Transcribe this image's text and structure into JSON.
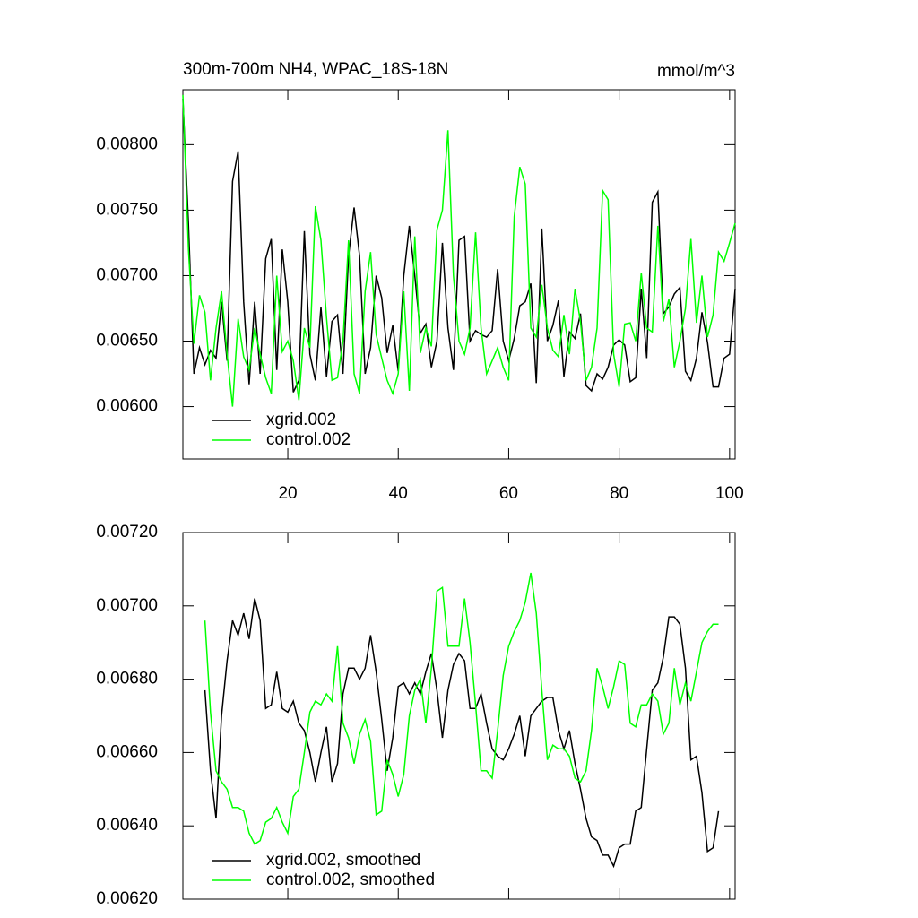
{
  "chart_data": [
    {
      "type": "line",
      "title": "300m-700m NH4, WPAC_18S-18N",
      "units": "mmol/m^3",
      "x": [
        1,
        2,
        3,
        4,
        5,
        6,
        7,
        8,
        9,
        10,
        11,
        12,
        13,
        14,
        15,
        16,
        17,
        18,
        19,
        20,
        21,
        22,
        23,
        24,
        25,
        26,
        27,
        28,
        29,
        30,
        31,
        32,
        33,
        34,
        35,
        36,
        37,
        38,
        39,
        40,
        41,
        42,
        43,
        44,
        45,
        46,
        47,
        48,
        49,
        50,
        51,
        52,
        53,
        54,
        55,
        56,
        57,
        58,
        59,
        60,
        61,
        62,
        63,
        64,
        65,
        66,
        67,
        68,
        69,
        70,
        71,
        72,
        73,
        74,
        75,
        76,
        77,
        78,
        79,
        80,
        81,
        82,
        83,
        84,
        85,
        86,
        87,
        88,
        89,
        90,
        91,
        92,
        93,
        94,
        95,
        96,
        97,
        98,
        99,
        100,
        101
      ],
      "series": [
        {
          "name": "xgrid.002",
          "color": "#000000",
          "values": [
            0.00835,
            0.0074,
            0.00625,
            0.00645,
            0.00632,
            0.00643,
            0.00637,
            0.0068,
            0.00635,
            0.00772,
            0.00795,
            0.0068,
            0.00617,
            0.0068,
            0.00625,
            0.00713,
            0.00728,
            0.00628,
            0.0072,
            0.0068,
            0.00611,
            0.0062,
            0.00734,
            0.0064,
            0.0062,
            0.00676,
            0.00623,
            0.00665,
            0.0067,
            0.00625,
            0.00715,
            0.00752,
            0.00715,
            0.00625,
            0.00645,
            0.007,
            0.00683,
            0.00641,
            0.00662,
            0.00627,
            0.007,
            0.00738,
            0.007,
            0.00656,
            0.00663,
            0.0063,
            0.0065,
            0.00725,
            0.0066,
            0.00628,
            0.00727,
            0.0073,
            0.0065,
            0.00658,
            0.00655,
            0.00653,
            0.00658,
            0.00705,
            0.0065,
            0.00635,
            0.00652,
            0.00677,
            0.0068,
            0.00694,
            0.00618,
            0.00736,
            0.0065,
            0.00662,
            0.00681,
            0.00623,
            0.00657,
            0.00652,
            0.00671,
            0.00616,
            0.00612,
            0.00625,
            0.00621,
            0.0063,
            0.00647,
            0.00651,
            0.00647,
            0.00619,
            0.00622,
            0.0069,
            0.00637,
            0.00756,
            0.00764,
            0.00671,
            0.00676,
            0.00686,
            0.00691,
            0.00627,
            0.0062,
            0.00637,
            0.00672,
            0.00649,
            0.00615,
            0.00615,
            0.00637,
            0.0064,
            0.0069
          ]
        },
        {
          "name": "control.002",
          "color": "#00ff00",
          "values": [
            0.00838,
            0.0072,
            0.00648,
            0.00685,
            0.00672,
            0.0062,
            0.0066,
            0.00688,
            0.0064,
            0.006,
            0.00667,
            0.00638,
            0.00628,
            0.0066,
            0.0064,
            0.00622,
            0.0061,
            0.007,
            0.00642,
            0.0065,
            0.00635,
            0.00605,
            0.0066,
            0.00645,
            0.00753,
            0.00727,
            0.00668,
            0.0062,
            0.00622,
            0.0065,
            0.00727,
            0.00625,
            0.0061,
            0.00688,
            0.00718,
            0.00655,
            0.00637,
            0.0062,
            0.0061,
            0.00625,
            0.00688,
            0.00612,
            0.0073,
            0.00641,
            0.0066,
            0.00646,
            0.00735,
            0.0075,
            0.00811,
            0.007,
            0.0065,
            0.0064,
            0.0066,
            0.00733,
            0.0066,
            0.00625,
            0.00635,
            0.00645,
            0.0063,
            0.0062,
            0.00745,
            0.00783,
            0.0077,
            0.0066,
            0.00653,
            0.00693,
            0.0066,
            0.00643,
            0.00638,
            0.0067,
            0.0064,
            0.0069,
            0.00665,
            0.0062,
            0.0063,
            0.0066,
            0.00765,
            0.00758,
            0.0064,
            0.00615,
            0.00663,
            0.00664,
            0.0065,
            0.00702,
            0.0066,
            0.00657,
            0.00738,
            0.00665,
            0.00682,
            0.0063,
            0.0065,
            0.00675,
            0.00728,
            0.00664,
            0.007,
            0.00653,
            0.0067,
            0.00718,
            0.00711,
            0.00725,
            0.0074
          ]
        }
      ],
      "xlim": [
        1,
        101
      ],
      "xticks": [
        20,
        40,
        60,
        80,
        100
      ],
      "xtick_labels": true,
      "ylim": [
        0.0056,
        0.00842
      ],
      "yticks": [
        {
          "value": 0.006,
          "label": "0.00600"
        },
        {
          "value": 0.0065,
          "label": "0.00650"
        },
        {
          "value": 0.007,
          "label": "0.00700"
        },
        {
          "value": 0.0075,
          "label": "0.00750"
        },
        {
          "value": 0.008,
          "label": "0.00800"
        }
      ],
      "legend": "lower left",
      "grid": false
    },
    {
      "type": "line",
      "x": [
        5,
        6,
        7,
        8,
        9,
        10,
        11,
        12,
        13,
        14,
        15,
        16,
        17,
        18,
        19,
        20,
        21,
        22,
        23,
        24,
        25,
        26,
        27,
        28,
        29,
        30,
        31,
        32,
        33,
        34,
        35,
        36,
        37,
        38,
        39,
        40,
        41,
        42,
        43,
        44,
        45,
        46,
        47,
        48,
        49,
        50,
        51,
        52,
        53,
        54,
        55,
        56,
        57,
        58,
        59,
        60,
        61,
        62,
        63,
        64,
        65,
        66,
        67,
        68,
        69,
        70,
        71,
        72,
        73,
        74,
        75,
        76,
        77,
        78,
        79,
        80,
        81,
        82,
        83,
        84,
        85,
        86,
        87,
        88,
        89,
        90,
        91,
        92,
        93,
        94,
        95,
        96,
        97,
        98
      ],
      "series": [
        {
          "name": "xgrid.002, smoothed",
          "color": "#000000",
          "values": [
            0.00677,
            0.00655,
            0.00642,
            0.0067,
            0.00685,
            0.00696,
            0.00692,
            0.00698,
            0.00691,
            0.00702,
            0.00696,
            0.00672,
            0.00673,
            0.00682,
            0.00672,
            0.00671,
            0.00674,
            0.00668,
            0.00666,
            0.0066,
            0.00652,
            0.0066,
            0.00667,
            0.00652,
            0.00657,
            0.00676,
            0.00683,
            0.00683,
            0.0068,
            0.00683,
            0.00692,
            0.00682,
            0.00669,
            0.00655,
            0.00664,
            0.00678,
            0.00679,
            0.00676,
            0.00679,
            0.00676,
            0.00682,
            0.00687,
            0.00677,
            0.00664,
            0.00677,
            0.00684,
            0.00687,
            0.00685,
            0.00672,
            0.00672,
            0.00676,
            0.00668,
            0.00661,
            0.00659,
            0.00658,
            0.00661,
            0.00665,
            0.0067,
            0.00659,
            0.0067,
            0.00672,
            0.00674,
            0.00675,
            0.00675,
            0.00666,
            0.00661,
            0.00666,
            0.00657,
            0.0065,
            0.00642,
            0.00637,
            0.00636,
            0.00632,
            0.00632,
            0.00629,
            0.00634,
            0.00635,
            0.00635,
            0.00644,
            0.00645,
            0.00661,
            0.00677,
            0.00679,
            0.00686,
            0.00697,
            0.00697,
            0.00695,
            0.00683,
            0.00658,
            0.00659,
            0.00649,
            0.00633,
            0.00634,
            0.00644
          ]
        },
        {
          "name": "control.002, smoothed",
          "color": "#00ff00",
          "values": [
            0.00696,
            0.00671,
            0.00655,
            0.00652,
            0.0065,
            0.00645,
            0.00645,
            0.00644,
            0.00638,
            0.00635,
            0.00636,
            0.00641,
            0.00642,
            0.00645,
            0.00641,
            0.00638,
            0.00648,
            0.0065,
            0.0066,
            0.00671,
            0.00674,
            0.00673,
            0.00676,
            0.00674,
            0.00689,
            0.00668,
            0.00664,
            0.00657,
            0.00665,
            0.00669,
            0.00663,
            0.00643,
            0.00644,
            0.00658,
            0.00654,
            0.00648,
            0.00654,
            0.0067,
            0.00677,
            0.0068,
            0.00668,
            0.00683,
            0.00704,
            0.00705,
            0.00689,
            0.00689,
            0.00689,
            0.00702,
            0.0069,
            0.00673,
            0.00655,
            0.00655,
            0.00653,
            0.00666,
            0.00681,
            0.00689,
            0.00693,
            0.00696,
            0.00701,
            0.00709,
            0.00698,
            0.00677,
            0.00658,
            0.00662,
            0.00661,
            0.00661,
            0.00659,
            0.00653,
            0.00652,
            0.00655,
            0.00666,
            0.00683,
            0.00678,
            0.00672,
            0.00678,
            0.00685,
            0.00684,
            0.00668,
            0.00667,
            0.00673,
            0.00673,
            0.00676,
            0.00674,
            0.00665,
            0.00668,
            0.00683,
            0.00673,
            0.00679,
            0.00674,
            0.00682,
            0.0069,
            0.00693,
            0.00695,
            0.00695
          ]
        }
      ],
      "xlim": [
        1,
        101
      ],
      "xticks": [
        20,
        40,
        60,
        80,
        100
      ],
      "xtick_labels": false,
      "ylim": [
        0.0062,
        0.0072
      ],
      "yticks": [
        {
          "value": 0.0062,
          "label": "0.00620"
        },
        {
          "value": 0.0064,
          "label": "0.00640"
        },
        {
          "value": 0.0066,
          "label": "0.00660"
        },
        {
          "value": 0.0068,
          "label": "0.00680"
        },
        {
          "value": 0.007,
          "label": "0.00700"
        },
        {
          "value": 0.0072,
          "label": "0.00720"
        }
      ],
      "legend": "lower left",
      "grid": false
    }
  ]
}
